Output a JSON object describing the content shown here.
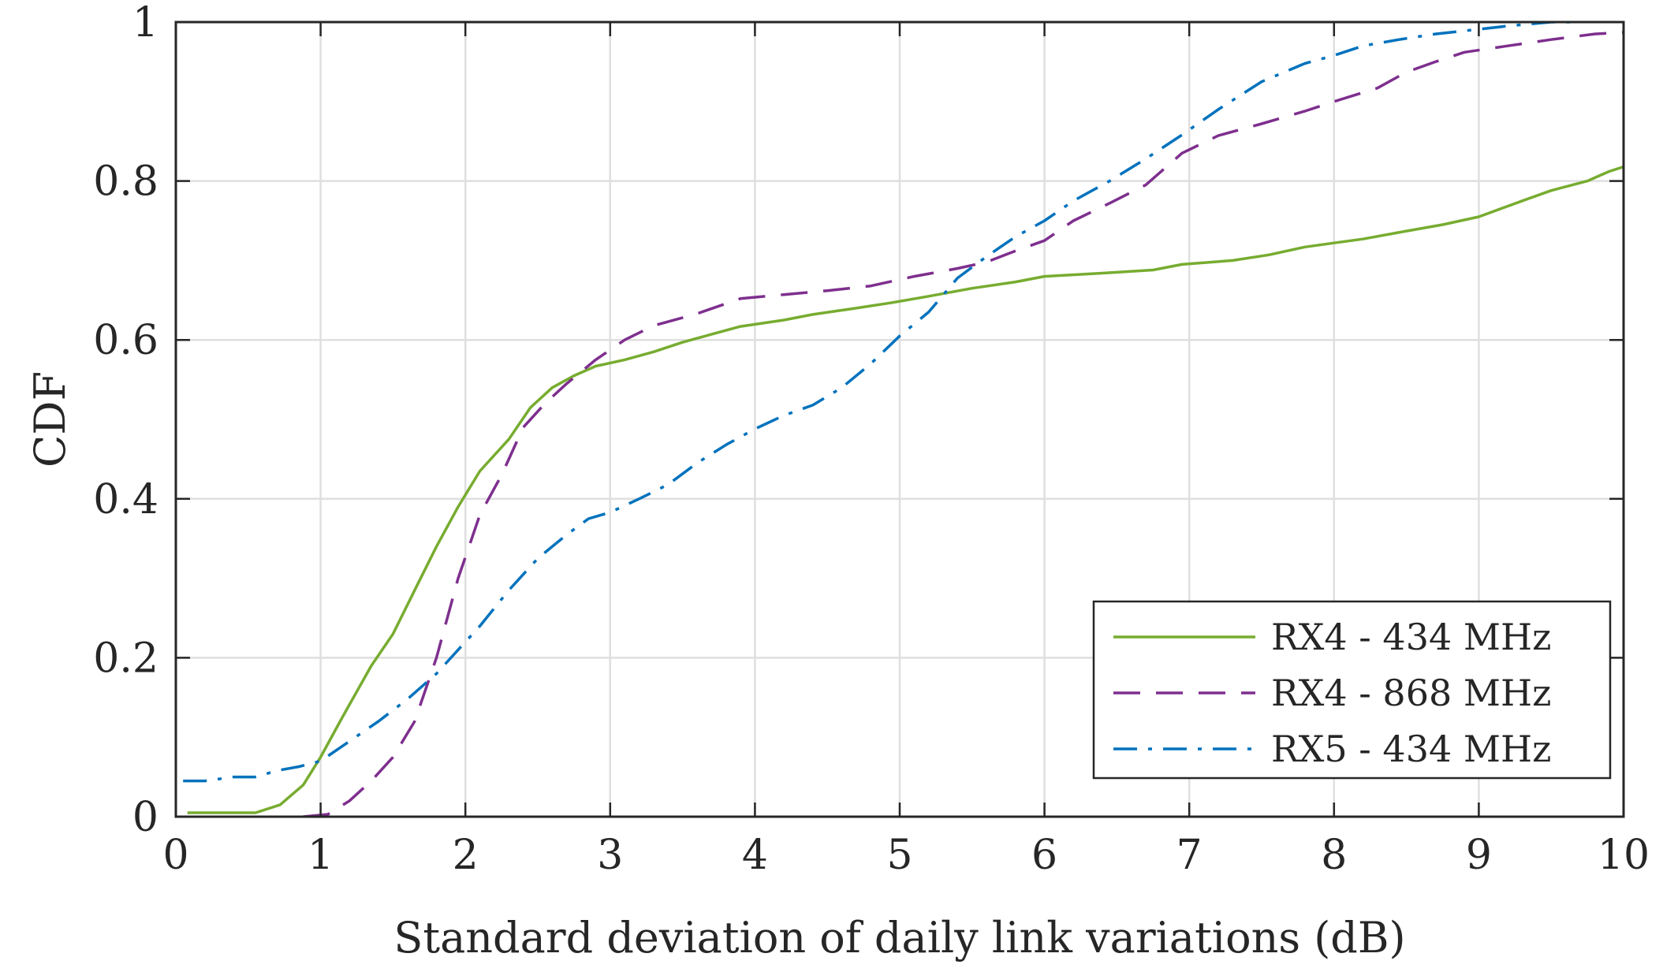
{
  "chart_data": {
    "type": "line",
    "title": "",
    "xlabel": "Standard deviation of daily link variations (dB)",
    "ylabel": "CDF",
    "xlim": [
      0,
      10
    ],
    "ylim": [
      0,
      1
    ],
    "grid": true,
    "legend_position": "bottom-right",
    "x_ticks": [
      0,
      1,
      2,
      3,
      4,
      5,
      6,
      7,
      8,
      9,
      10
    ],
    "x_tick_labels": [
      "0",
      "1",
      "2",
      "3",
      "4",
      "5",
      "6",
      "7",
      "8",
      "9",
      "10"
    ],
    "y_ticks": [
      0,
      0.2,
      0.4,
      0.6,
      0.8,
      1
    ],
    "y_tick_labels": [
      "0",
      "0.2",
      "0.4",
      "0.6",
      "0.8",
      "1"
    ],
    "series": [
      {
        "name": "RX4 - 434 MHz",
        "color": "#77AC30",
        "dash": "solid",
        "points": [
          [
            0.08,
            0.005
          ],
          [
            0.55,
            0.005
          ],
          [
            0.72,
            0.015
          ],
          [
            0.88,
            0.04
          ],
          [
            1.0,
            0.075
          ],
          [
            1.15,
            0.125
          ],
          [
            1.35,
            0.19
          ],
          [
            1.5,
            0.23
          ],
          [
            1.65,
            0.285
          ],
          [
            1.8,
            0.34
          ],
          [
            1.95,
            0.39
          ],
          [
            2.1,
            0.435
          ],
          [
            2.3,
            0.475
          ],
          [
            2.45,
            0.515
          ],
          [
            2.6,
            0.54
          ],
          [
            2.75,
            0.555
          ],
          [
            2.9,
            0.567
          ],
          [
            3.1,
            0.575
          ],
          [
            3.3,
            0.585
          ],
          [
            3.5,
            0.597
          ],
          [
            3.7,
            0.607
          ],
          [
            3.9,
            0.617
          ],
          [
            4.2,
            0.625
          ],
          [
            4.4,
            0.632
          ],
          [
            4.7,
            0.64
          ],
          [
            4.95,
            0.647
          ],
          [
            5.2,
            0.655
          ],
          [
            5.5,
            0.665
          ],
          [
            5.8,
            0.673
          ],
          [
            6.0,
            0.68
          ],
          [
            6.4,
            0.684
          ],
          [
            6.75,
            0.688
          ],
          [
            6.95,
            0.695
          ],
          [
            7.3,
            0.7
          ],
          [
            7.55,
            0.707
          ],
          [
            7.8,
            0.717
          ],
          [
            8.0,
            0.722
          ],
          [
            8.2,
            0.727
          ],
          [
            8.5,
            0.737
          ],
          [
            8.75,
            0.745
          ],
          [
            9.0,
            0.755
          ],
          [
            9.3,
            0.775
          ],
          [
            9.5,
            0.788
          ],
          [
            9.75,
            0.8
          ],
          [
            9.9,
            0.812
          ],
          [
            10.0,
            0.818
          ]
        ]
      },
      {
        "name": "RX4 - 868 MHz",
        "color": "#7E2F8E",
        "dash": "dashed",
        "points": [
          [
            0.88,
            0.0
          ],
          [
            1.05,
            0.003
          ],
          [
            1.2,
            0.02
          ],
          [
            1.35,
            0.045
          ],
          [
            1.5,
            0.075
          ],
          [
            1.65,
            0.12
          ],
          [
            1.8,
            0.2
          ],
          [
            1.95,
            0.3
          ],
          [
            2.1,
            0.38
          ],
          [
            2.25,
            0.43
          ],
          [
            2.4,
            0.49
          ],
          [
            2.55,
            0.52
          ],
          [
            2.7,
            0.545
          ],
          [
            2.9,
            0.575
          ],
          [
            3.1,
            0.6
          ],
          [
            3.3,
            0.618
          ],
          [
            3.6,
            0.633
          ],
          [
            3.9,
            0.652
          ],
          [
            4.2,
            0.657
          ],
          [
            4.5,
            0.662
          ],
          [
            4.8,
            0.668
          ],
          [
            5.1,
            0.68
          ],
          [
            5.4,
            0.69
          ],
          [
            5.6,
            0.698
          ],
          [
            5.8,
            0.712
          ],
          [
            6.0,
            0.725
          ],
          [
            6.2,
            0.75
          ],
          [
            6.45,
            0.772
          ],
          [
            6.7,
            0.795
          ],
          [
            6.95,
            0.835
          ],
          [
            7.2,
            0.857
          ],
          [
            7.5,
            0.872
          ],
          [
            7.8,
            0.888
          ],
          [
            8.0,
            0.9
          ],
          [
            8.3,
            0.917
          ],
          [
            8.5,
            0.937
          ],
          [
            8.7,
            0.95
          ],
          [
            8.9,
            0.962
          ],
          [
            9.2,
            0.97
          ],
          [
            9.5,
            0.978
          ],
          [
            9.8,
            0.985
          ],
          [
            10.0,
            0.987
          ]
        ]
      },
      {
        "name": "RX5 - 434 MHz",
        "color": "#0072BD",
        "dash": "dashdot",
        "points": [
          [
            0.05,
            0.045
          ],
          [
            0.2,
            0.045
          ],
          [
            0.4,
            0.05
          ],
          [
            0.55,
            0.05
          ],
          [
            0.7,
            0.058
          ],
          [
            0.85,
            0.063
          ],
          [
            1.0,
            0.07
          ],
          [
            1.2,
            0.095
          ],
          [
            1.4,
            0.12
          ],
          [
            1.6,
            0.148
          ],
          [
            1.8,
            0.18
          ],
          [
            1.95,
            0.21
          ],
          [
            2.1,
            0.24
          ],
          [
            2.3,
            0.285
          ],
          [
            2.5,
            0.325
          ],
          [
            2.7,
            0.355
          ],
          [
            2.85,
            0.375
          ],
          [
            3.0,
            0.383
          ],
          [
            3.2,
            0.4
          ],
          [
            3.4,
            0.418
          ],
          [
            3.6,
            0.445
          ],
          [
            3.8,
            0.468
          ],
          [
            4.0,
            0.488
          ],
          [
            4.2,
            0.505
          ],
          [
            4.4,
            0.518
          ],
          [
            4.6,
            0.54
          ],
          [
            4.8,
            0.57
          ],
          [
            5.0,
            0.605
          ],
          [
            5.2,
            0.635
          ],
          [
            5.4,
            0.678
          ],
          [
            5.6,
            0.705
          ],
          [
            5.8,
            0.73
          ],
          [
            6.0,
            0.75
          ],
          [
            6.2,
            0.775
          ],
          [
            6.45,
            0.8
          ],
          [
            6.7,
            0.828
          ],
          [
            6.95,
            0.858
          ],
          [
            7.2,
            0.89
          ],
          [
            7.5,
            0.925
          ],
          [
            7.8,
            0.948
          ],
          [
            8.0,
            0.958
          ],
          [
            8.2,
            0.97
          ],
          [
            8.45,
            0.978
          ],
          [
            8.7,
            0.985
          ],
          [
            8.95,
            0.99
          ],
          [
            9.2,
            0.995
          ],
          [
            9.5,
            1.0
          ],
          [
            9.7,
            1.0
          ]
        ]
      }
    ]
  }
}
